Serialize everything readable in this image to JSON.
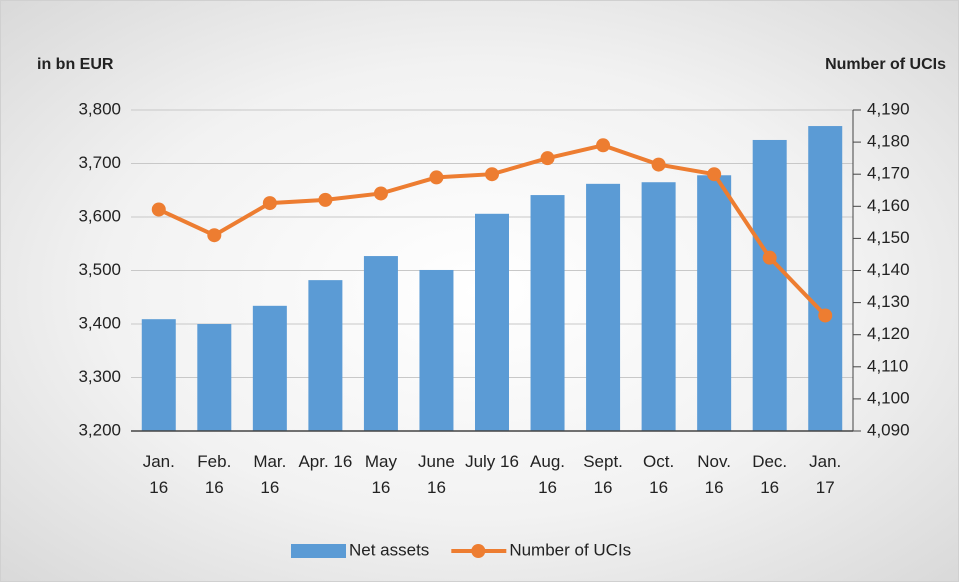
{
  "chart_data": {
    "type": "bar_line",
    "y_label": "in bn EUR",
    "y2_label": "Number of UCIs",
    "categories": [
      "Jan. 16",
      "Feb. 16",
      "Mar. 16",
      "Apr. 16",
      "May 16",
      "June 16",
      "July 16",
      "Aug. 16",
      "Sept. 16",
      "Oct. 16",
      "Nov. 16",
      "Dec. 16",
      "Jan. 17"
    ],
    "series": [
      {
        "name": "Net assets",
        "color": "#5b9bd5",
        "type": "bar",
        "values": [
          3409,
          3400,
          3434,
          3482,
          3527,
          3501,
          3606,
          3641,
          3662,
          3665,
          3678,
          3744,
          3770
        ]
      },
      {
        "name": "Number of UCIs",
        "color": "#ed7d31",
        "type": "line",
        "axis": "y2",
        "values": [
          4159,
          4151,
          4161,
          4162,
          4164,
          4169,
          4170,
          4175,
          4179,
          4173,
          4170,
          4144,
          4126
        ]
      }
    ],
    "ylim": [
      3200,
      3800
    ],
    "yticks": [
      {
        "value": 3200,
        "label": "3,200"
      },
      {
        "value": 3300,
        "label": "3,300"
      },
      {
        "value": 3400,
        "label": "3,400"
      },
      {
        "value": 3500,
        "label": "3,500"
      },
      {
        "value": 3600,
        "label": "3,600"
      },
      {
        "value": 3700,
        "label": "3,700"
      },
      {
        "value": 3800,
        "label": "3,800"
      }
    ],
    "y2lim": [
      4090,
      4190
    ],
    "y2ticks": [
      {
        "value": 4090,
        "label": "4,090"
      },
      {
        "value": 4100,
        "label": "4,100"
      },
      {
        "value": 4110,
        "label": "4,110"
      },
      {
        "value": 4120,
        "label": "4,120"
      },
      {
        "value": 4130,
        "label": "4,130"
      },
      {
        "value": 4140,
        "label": "4,140"
      },
      {
        "value": 4150,
        "label": "4,150"
      },
      {
        "value": 4160,
        "label": "4,160"
      },
      {
        "value": 4170,
        "label": "4,170"
      },
      {
        "value": 4180,
        "label": "4,180"
      },
      {
        "value": 4190,
        "label": "4,190"
      }
    ],
    "grid": true,
    "legend": "bottom"
  }
}
